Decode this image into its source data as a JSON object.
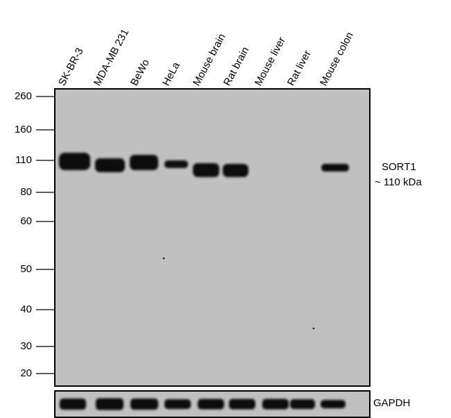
{
  "lanes": [
    "SK-BR-3",
    "MDA-MB 231",
    "BeWo",
    "HeLa",
    "Mouse brain",
    "Rat brain",
    "Mouse liver",
    "Rat liver",
    "Mouse colon"
  ],
  "markers": [
    "260",
    "160",
    "110",
    "80",
    "60",
    "50",
    "40",
    "30",
    "20"
  ],
  "target": {
    "name": "SORT1",
    "size": "~ 110 kDa"
  },
  "loading_control": "GAPDH",
  "colors": {
    "membrane": "#c0c0c0",
    "band": "#111111"
  }
}
